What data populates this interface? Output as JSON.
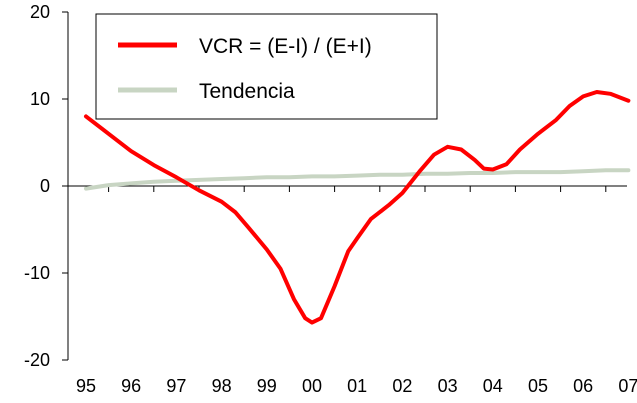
{
  "chart_data": {
    "type": "line",
    "title": "",
    "xlabel": "",
    "ylabel": "",
    "x_categories": [
      "95",
      "96",
      "97",
      "98",
      "99",
      "00",
      "01",
      "02",
      "03",
      "04",
      "05",
      "06",
      "07"
    ],
    "y_ticks": [
      "20",
      "10",
      "0",
      "-10",
      "-20"
    ],
    "ylim": [
      -20,
      20
    ],
    "xlim": [
      95,
      107
    ],
    "grid": false,
    "legend_position": "top-center",
    "series": [
      {
        "name": "VCR  = (E-I) / (E+I)",
        "color": "#ff0000",
        "points": [
          [
            95.0,
            8.0
          ],
          [
            95.5,
            6.0
          ],
          [
            96.0,
            4.0
          ],
          [
            96.5,
            2.4
          ],
          [
            97.0,
            1.0
          ],
          [
            97.5,
            -0.5
          ],
          [
            98.0,
            -1.8
          ],
          [
            98.3,
            -3.0
          ],
          [
            98.6,
            -4.8
          ],
          [
            99.0,
            -7.3
          ],
          [
            99.3,
            -9.5
          ],
          [
            99.6,
            -13.0
          ],
          [
            99.85,
            -15.2
          ],
          [
            100.0,
            -15.7
          ],
          [
            100.2,
            -15.2
          ],
          [
            100.5,
            -11.5
          ],
          [
            100.8,
            -7.5
          ],
          [
            101.0,
            -6.0
          ],
          [
            101.3,
            -3.8
          ],
          [
            101.7,
            -2.2
          ],
          [
            102.0,
            -0.8
          ],
          [
            102.4,
            1.8
          ],
          [
            102.7,
            3.6
          ],
          [
            103.0,
            4.5
          ],
          [
            103.3,
            4.2
          ],
          [
            103.6,
            3.0
          ],
          [
            103.8,
            2.0
          ],
          [
            104.0,
            1.9
          ],
          [
            104.3,
            2.5
          ],
          [
            104.6,
            4.2
          ],
          [
            105.0,
            6.0
          ],
          [
            105.4,
            7.6
          ],
          [
            105.7,
            9.2
          ],
          [
            106.0,
            10.3
          ],
          [
            106.3,
            10.8
          ],
          [
            106.6,
            10.6
          ],
          [
            107.0,
            9.8
          ]
        ]
      },
      {
        "name": "Tendencia",
        "color": "#c8d5c3",
        "points": [
          [
            95.0,
            -0.3
          ],
          [
            95.5,
            0.1
          ],
          [
            96.0,
            0.3
          ],
          [
            96.5,
            0.5
          ],
          [
            97.0,
            0.6
          ],
          [
            97.5,
            0.7
          ],
          [
            98.0,
            0.8
          ],
          [
            98.5,
            0.9
          ],
          [
            99.0,
            1.0
          ],
          [
            99.5,
            1.0
          ],
          [
            100.0,
            1.1
          ],
          [
            100.5,
            1.1
          ],
          [
            101.0,
            1.2
          ],
          [
            101.5,
            1.3
          ],
          [
            102.0,
            1.3
          ],
          [
            102.5,
            1.4
          ],
          [
            103.0,
            1.4
          ],
          [
            103.5,
            1.5
          ],
          [
            104.0,
            1.5
          ],
          [
            104.5,
            1.6
          ],
          [
            105.0,
            1.6
          ],
          [
            105.5,
            1.6
          ],
          [
            106.0,
            1.7
          ],
          [
            106.5,
            1.8
          ],
          [
            107.0,
            1.8
          ]
        ]
      }
    ]
  }
}
